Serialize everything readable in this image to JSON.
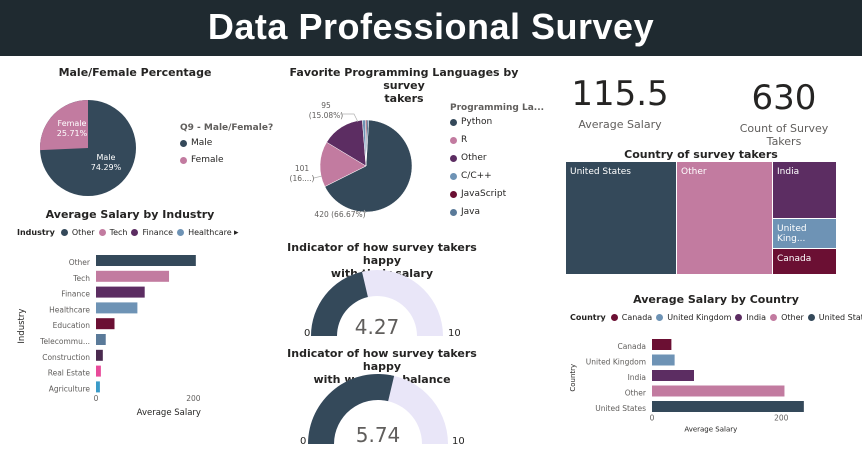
{
  "title": "Data Professional Survey",
  "colors": {
    "dark": "#34495a",
    "pink": "#c27ba0",
    "purple": "#5c2d62",
    "blue": "#6e93b5",
    "maroon": "#6b0f33",
    "red": "#d6336c",
    "gauge_bg": "#e9e6f8"
  },
  "gender": {
    "title": "Male/Female Percentage",
    "legend_title": "Q9 - Male/Female?",
    "items": [
      {
        "label": "Male",
        "pct": "74.29%",
        "value": 74.29,
        "color": "#34495a"
      },
      {
        "label": "Female",
        "pct": "25.71%",
        "value": 25.71,
        "color": "#c27ba0"
      }
    ]
  },
  "languages": {
    "title_line1": "Favorite Programming Languages by survey",
    "title_line2": "takers",
    "legend_title": "Programming La...",
    "legend": [
      {
        "label": "Python",
        "color": "#34495a"
      },
      {
        "label": "R",
        "color": "#c27ba0"
      },
      {
        "label": "Other",
        "color": "#5c2d62"
      },
      {
        "label": "C/C++",
        "color": "#6e93b5"
      },
      {
        "label": "JavaScript",
        "color": "#6b0f33"
      },
      {
        "label": "Java",
        "color": "#5a7a99"
      }
    ],
    "labels": {
      "python": "420 (66.67%)",
      "r_1": "101",
      "r_2": "(16....)",
      "other_1": "95",
      "other_2": "(15.08%)"
    },
    "slices": [
      {
        "name": "Python",
        "value": 420,
        "color": "#34495a"
      },
      {
        "name": "R",
        "value": 101,
        "color": "#c27ba0"
      },
      {
        "name": "Other",
        "value": 95,
        "color": "#5c2d62"
      },
      {
        "name": "C/C++",
        "value": 7,
        "color": "#6e93b5"
      },
      {
        "name": "JavaScript",
        "value": 3,
        "color": "#6b0f33"
      },
      {
        "name": "Java",
        "value": 4,
        "color": "#5a7a99"
      }
    ]
  },
  "kpis": [
    {
      "value": "115.5",
      "label": "Average Salary"
    },
    {
      "value": "630",
      "label": "Count of Survey Takers"
    }
  ],
  "treemap": {
    "title": "Country of survey takers",
    "cells": [
      {
        "label": "United States",
        "color": "#34495a"
      },
      {
        "label": "Other",
        "color": "#c27ba0"
      },
      {
        "label": "India",
        "color": "#5c2d62"
      },
      {
        "label": "United King...",
        "color": "#6e93b5"
      },
      {
        "label": "Canada",
        "color": "#6b0f33"
      }
    ]
  },
  "industry_chart": {
    "title": "Average Salary by Industry",
    "legend_title": "Industry",
    "legend": [
      {
        "label": "Other",
        "color": "#34495a"
      },
      {
        "label": "Tech",
        "color": "#c27ba0"
      },
      {
        "label": "Finance",
        "color": "#5c2d62"
      },
      {
        "label": "Healthcare",
        "color": "#6e93b5"
      }
    ],
    "ylabel": "Industry",
    "xlabel": "Average Salary",
    "ticks": [
      "0",
      "200"
    ]
  },
  "gauge_salary": {
    "title_line1": "Indicator of how survey takers happy",
    "title_line2": "with their salary",
    "value": "4.27",
    "min": "0",
    "max": "10"
  },
  "gauge_wlb": {
    "title_line1": "Indicator of how survey takers happy",
    "title_line2": "with work life balance",
    "value": "5.74",
    "min": "0",
    "max": "10"
  },
  "country_chart": {
    "title": "Average Salary by Country",
    "legend_title": "Country",
    "legend": [
      {
        "label": "Canada",
        "color": "#6b0f33"
      },
      {
        "label": "United Kingdom",
        "color": "#6e93b5"
      },
      {
        "label": "India",
        "color": "#5c2d62"
      },
      {
        "label": "Other",
        "color": "#c27ba0"
      },
      {
        "label": "United States",
        "color": "#34495a"
      }
    ],
    "ylabel": "Country",
    "xlabel": "Average Salary",
    "ticks": [
      "0",
      "200"
    ]
  },
  "chart_data": [
    {
      "type": "bar",
      "title": "Average Salary by Industry",
      "orientation": "horizontal",
      "categories": [
        "Other",
        "Tech",
        "Finance",
        "Healthcare",
        "Education",
        "Telecommu...",
        "Construction",
        "Real Estate",
        "Agriculture"
      ],
      "values": [
        205,
        150,
        100,
        85,
        38,
        20,
        14,
        10,
        8
      ],
      "colors": [
        "#34495a",
        "#c27ba0",
        "#5c2d62",
        "#6e93b5",
        "#6b0f33",
        "#5a7a99",
        "#4a2a4f",
        "#e84a9a",
        "#3a9bc8"
      ],
      "xlabel": "Average Salary",
      "ylabel": "Industry",
      "xlim": [
        0,
        230
      ]
    },
    {
      "type": "bar",
      "title": "Average Salary by Country",
      "orientation": "horizontal",
      "categories": [
        "Canada",
        "United Kingdom",
        "India",
        "Other",
        "United States"
      ],
      "values": [
        30,
        35,
        65,
        205,
        235
      ],
      "colors": [
        "#6b0f33",
        "#6e93b5",
        "#5c2d62",
        "#c27ba0",
        "#34495a"
      ],
      "xlabel": "Average Salary",
      "ylabel": "Country",
      "xlim": [
        0,
        260
      ]
    },
    {
      "type": "pie",
      "title": "Male/Female Percentage",
      "categories": [
        "Male",
        "Female"
      ],
      "values": [
        74.29,
        25.71
      ]
    }
  ]
}
